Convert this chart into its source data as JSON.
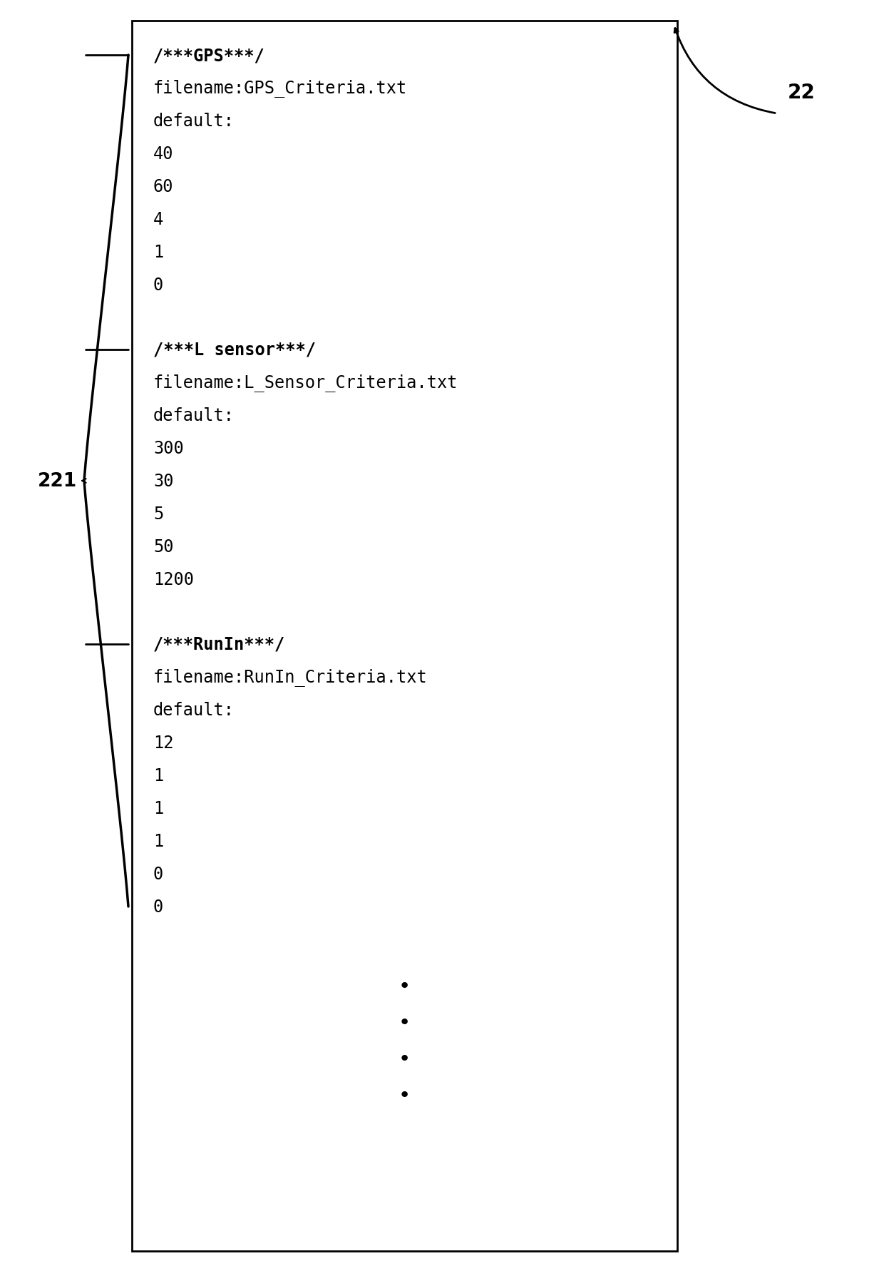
{
  "bg_color": "#ffffff",
  "box_color": "#ffffff",
  "box_edge_color": "#000000",
  "font_size": 17,
  "mono_font": "monospace",
  "sections": [
    {
      "header": "/***GPS***/",
      "lines": [
        "filename:GPS_Criteria.txt",
        "default:",
        "40",
        "60",
        "4",
        "1",
        "0"
      ]
    },
    {
      "header": "/***L sensor***/",
      "lines": [
        "filename:L_Sensor_Criteria.txt",
        "default:",
        "300",
        "30",
        "5",
        "50",
        "1200"
      ]
    },
    {
      "header": "/***RunIn***/",
      "lines": [
        "filename:RunIn_Criteria.txt",
        "default:",
        "12",
        "1",
        "1",
        "1",
        "0",
        "0"
      ]
    }
  ],
  "label_221": "221",
  "label_22": "22"
}
